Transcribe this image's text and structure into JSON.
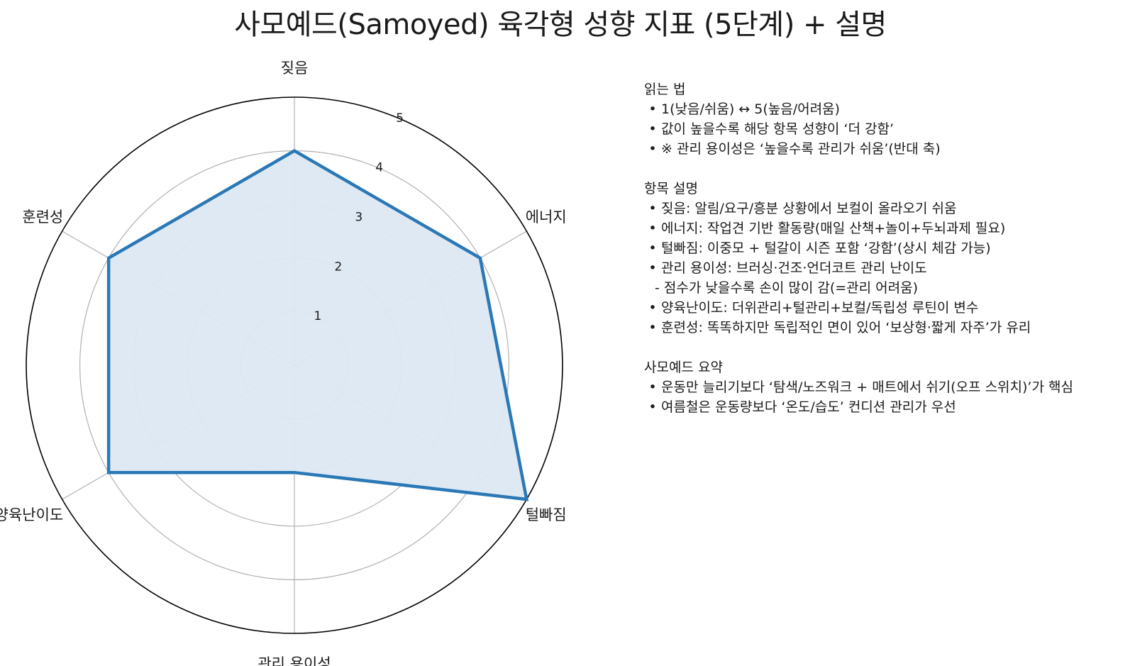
{
  "chart_data": {
    "type": "radar",
    "title": "사모예드(Samoyed) 육각형 성향 지표 (5단계) + 설명",
    "axes": [
      "짖음",
      "에너지",
      "털빠짐",
      "관리 용이성",
      "양육난이도",
      "훈련성"
    ],
    "values": [
      4,
      4,
      5,
      2,
      4,
      4
    ],
    "rlim": [
      0,
      5
    ],
    "rticks": [
      "1",
      "2",
      "3",
      "4",
      "5"
    ],
    "grid": true,
    "colors": {
      "line": "#2a78b5",
      "fill": "#dce8f3",
      "grid": "#b0b0b0",
      "outer": "#000000"
    }
  },
  "notes": {
    "sections": [
      {
        "title": "읽는 법",
        "items": [
          {
            "kind": "bullet",
            "text": "1(낮음/쉬움) ↔ 5(높음/어려움)"
          },
          {
            "kind": "bullet",
            "text": "값이 높을수록 해당 항목 성향이 ‘더 강함’"
          },
          {
            "kind": "bullet",
            "text": "※ 관리 용이성은 ‘높을수록 관리가 쉬움’(반대 축)"
          }
        ]
      },
      {
        "title": "항목 설명",
        "items": [
          {
            "kind": "bullet",
            "text": "짖음: 알림/요구/흥분 상황에서 보컬이 올라오기 쉬움"
          },
          {
            "kind": "bullet",
            "text": "에너지: 작업견 기반 활동량(매일 산책+놀이+두뇌과제 필요)"
          },
          {
            "kind": "bullet",
            "text": "털빠짐: 이중모 + 털갈이 시즌 포함 ‘강함’(상시 체감 가능)"
          },
          {
            "kind": "bullet",
            "text": "관리 용이성: 브러싱·건조·언더코트 관리 난이도"
          },
          {
            "kind": "sub",
            "text": "- 점수가 낮을수록 손이 많이 감(=관리 어려움)"
          },
          {
            "kind": "bullet",
            "text": "양육난이도: 더위관리+털관리+보컬/독립성 루틴이 변수"
          },
          {
            "kind": "bullet",
            "text": "훈련성: 똑똑하지만 독립적인 면이 있어 ‘보상형·짧게 자주’가 유리"
          }
        ]
      },
      {
        "title": "사모예드 요약",
        "items": [
          {
            "kind": "bullet",
            "text": "운동만 늘리기보다 ‘탐색/노즈워크 + 매트에서 쉬기(오프 스위치)’가 핵심"
          },
          {
            "kind": "bullet",
            "text": "여름철은 운동량보다 ‘온도/습도’ 컨디션 관리가 우선"
          }
        ]
      }
    ]
  }
}
